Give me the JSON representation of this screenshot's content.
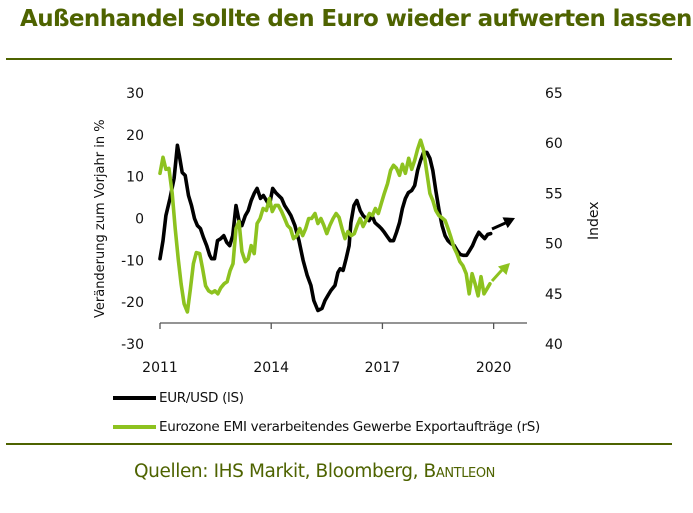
{
  "header": {
    "title": "Außenhandel sollte den Euro wieder aufwerten lassen"
  },
  "footer": {
    "source_prefix": "Quellen: IHS Markit, Bloomberg, ",
    "source_brand": "Bantleon"
  },
  "colors": {
    "title": "#4e6300",
    "eurusd": "#000000",
    "emi": "#8dc21f"
  },
  "chart_data": {
    "type": "line",
    "title": "Außenhandel sollte den Euro wieder aufwerten lassen",
    "xlabel": "",
    "ylabel": "Veränderung zum Vorjahr in %",
    "ylabel_right": "Index",
    "xlim": [
      2011,
      2020.9
    ],
    "ylim": [
      -30,
      30
    ],
    "ylim_right": [
      40,
      65
    ],
    "xticks": [
      2011,
      2014,
      2017,
      2020
    ],
    "xtick_labels": [
      "2011",
      "2014",
      "2017",
      "2020"
    ],
    "yticks": [
      30,
      20,
      10,
      0,
      -10,
      -20,
      -30
    ],
    "ytick_labels": [
      "30",
      "20",
      "10",
      "0",
      "-10",
      "-20",
      "-30"
    ],
    "yticks_right": [
      65,
      60,
      55,
      50,
      45,
      40
    ],
    "ytick_labels_right": [
      "65",
      "60",
      "55",
      "50",
      "45",
      "40"
    ],
    "grid": false,
    "legend_position": "bottom-left",
    "series": [
      {
        "name": "EUR/USD (lS)",
        "axis": "left",
        "color": "#000000",
        "x": [
          2011.0,
          2011.08,
          2011.16,
          2011.27,
          2011.38,
          2011.47,
          2011.52,
          2011.6,
          2011.68,
          2011.77,
          2011.85,
          2011.93,
          2012.01,
          2012.09,
          2012.17,
          2012.26,
          2012.34,
          2012.39,
          2012.47,
          2012.55,
          2012.64,
          2012.72,
          2012.8,
          2012.88,
          2012.96,
          2013.05,
          2013.13,
          2013.21,
          2013.3,
          2013.38,
          2013.46,
          2013.54,
          2013.62,
          2013.71,
          2013.79,
          2013.87,
          2013.95,
          2014.04,
          2014.12,
          2014.2,
          2014.28,
          2014.36,
          2014.45,
          2014.53,
          2014.64,
          2014.75,
          2014.86,
          2014.97,
          2015.07,
          2015.15,
          2015.26,
          2015.37,
          2015.45,
          2015.53,
          2015.61,
          2015.72,
          2015.8,
          2015.86,
          2015.94,
          2016.02,
          2016.1,
          2016.15,
          2016.23,
          2016.31,
          2016.4,
          2016.48,
          2016.56,
          2016.64,
          2016.72,
          2016.8,
          2016.89,
          2016.97,
          2017.05,
          2017.13,
          2017.21,
          2017.3,
          2017.38,
          2017.46,
          2017.54,
          2017.62,
          2017.7,
          2017.79,
          2017.87,
          2017.95,
          2018.03,
          2018.11,
          2018.2,
          2018.28,
          2018.36,
          2018.44,
          2018.53,
          2018.61,
          2018.69,
          2018.77,
          2018.85,
          2018.94,
          2019.02,
          2019.1,
          2019.18,
          2019.27,
          2019.35,
          2019.43,
          2019.51,
          2019.6,
          2019.68,
          2019.76,
          2019.84,
          2019.92
        ],
        "y": [
          -9.6,
          -5.3,
          0.7,
          4.8,
          9.6,
          17.5,
          15.1,
          11.0,
          10.3,
          5.5,
          3.1,
          0.0,
          -1.7,
          -2.4,
          -4.5,
          -6.5,
          -8.8,
          -9.6,
          -9.6,
          -5.3,
          -4.8,
          -4.1,
          -5.7,
          -6.5,
          -4.1,
          3.1,
          -0.5,
          -1.7,
          0.7,
          1.9,
          4.3,
          6.0,
          7.2,
          4.8,
          5.5,
          4.3,
          3.1,
          7.2,
          6.2,
          5.5,
          4.8,
          3.1,
          1.9,
          0.7,
          -1.7,
          -5.3,
          -10.0,
          -13.6,
          -16.0,
          -19.6,
          -22.0,
          -21.5,
          -19.6,
          -18.4,
          -17.2,
          -16.0,
          -12.9,
          -12.0,
          -12.4,
          -9.6,
          -6.5,
          -1.0,
          3.1,
          4.3,
          1.9,
          0.7,
          0.0,
          -0.5,
          0.7,
          -1.0,
          -1.7,
          -2.4,
          -3.3,
          -4.3,
          -5.3,
          -5.3,
          -3.3,
          -1.0,
          2.4,
          4.8,
          6.2,
          6.7,
          7.9,
          11.5,
          13.9,
          15.8,
          15.8,
          14.4,
          11.5,
          6.7,
          1.9,
          -1.7,
          -4.1,
          -5.3,
          -6.0,
          -6.5,
          -7.7,
          -8.6,
          -8.8,
          -8.8,
          -7.7,
          -6.5,
          -4.8,
          -3.3,
          -4.1,
          -4.8,
          -3.8,
          -3.6
        ]
      },
      {
        "name": "Eurozone EMI verarbeitendes Gewerbe Exportaufträge (rS)",
        "axis": "right",
        "color": "#8dc21f",
        "x": [
          2011.0,
          2011.08,
          2011.16,
          2011.24,
          2011.33,
          2011.41,
          2011.49,
          2011.57,
          2011.65,
          2011.74,
          2011.82,
          2011.9,
          2011.98,
          2012.07,
          2012.15,
          2012.23,
          2012.31,
          2012.4,
          2012.48,
          2012.56,
          2012.64,
          2012.73,
          2012.81,
          2012.89,
          2012.97,
          2013.05,
          2013.13,
          2013.21,
          2013.3,
          2013.38,
          2013.46,
          2013.54,
          2013.62,
          2013.7,
          2013.78,
          2013.87,
          2013.95,
          2014.03,
          2014.11,
          2014.19,
          2014.28,
          2014.36,
          2014.44,
          2014.52,
          2014.6,
          2014.69,
          2014.77,
          2014.85,
          2014.93,
          2015.01,
          2015.09,
          2015.18,
          2015.26,
          2015.34,
          2015.42,
          2015.5,
          2015.58,
          2015.67,
          2015.75,
          2015.83,
          2015.91,
          2015.99,
          2016.07,
          2016.16,
          2016.24,
          2016.32,
          2016.4,
          2016.48,
          2016.56,
          2016.65,
          2016.73,
          2016.81,
          2016.89,
          2016.97,
          2017.05,
          2017.14,
          2017.22,
          2017.3,
          2017.38,
          2017.46,
          2017.54,
          2017.62,
          2017.71,
          2017.79,
          2017.87,
          2017.95,
          2018.03,
          2018.11,
          2018.19,
          2018.28,
          2018.36,
          2018.44,
          2018.52,
          2018.6,
          2018.69,
          2018.77,
          2018.85,
          2018.93,
          2019.01,
          2019.09,
          2019.17,
          2019.26,
          2019.34,
          2019.42,
          2019.5,
          2019.58,
          2019.66,
          2019.74,
          2019.82,
          2019.9
        ],
        "y": [
          57.0,
          58.6,
          57.4,
          57.5,
          55.0,
          51.5,
          48.5,
          46.0,
          44.0,
          43.2,
          45.5,
          48.0,
          49.1,
          49.0,
          47.5,
          45.8,
          45.3,
          45.1,
          45.3,
          45.0,
          45.6,
          46.0,
          46.2,
          47.3,
          48.0,
          51.5,
          52.2,
          49.2,
          48.2,
          48.5,
          49.8,
          49.0,
          52.0,
          52.5,
          53.5,
          53.3,
          54.5,
          53.2,
          53.8,
          53.8,
          53.2,
          52.5,
          51.8,
          51.5,
          50.5,
          50.8,
          51.5,
          50.8,
          51.5,
          52.5,
          52.5,
          53.0,
          52.0,
          52.5,
          51.8,
          51.0,
          51.8,
          52.5,
          53.0,
          52.6,
          51.5,
          50.5,
          51.2,
          50.8,
          51.0,
          51.8,
          52.5,
          51.7,
          52.3,
          53.0,
          52.8,
          53.5,
          53.0,
          54.0,
          55.0,
          56.0,
          57.3,
          57.8,
          57.5,
          56.8,
          57.9,
          57.0,
          58.5,
          57.4,
          58.3,
          59.4,
          60.3,
          59.3,
          57.3,
          55.0,
          54.3,
          53.3,
          52.8,
          52.6,
          52.3,
          51.5,
          50.6,
          49.6,
          49.0,
          48.2,
          47.8,
          47.0,
          45.0,
          47.0,
          46.0,
          44.8,
          46.7,
          45.0,
          45.5,
          46.0
        ]
      }
    ],
    "annotations": [
      {
        "type": "arrow",
        "series": "EUR/USD (lS)",
        "direction": "up-right",
        "color": "#000000"
      },
      {
        "type": "arrow",
        "series": "Eurozone EMI verarbeitendes Gewerbe Exportaufträge (rS)",
        "direction": "up-right",
        "color": "#8dc21f"
      }
    ]
  }
}
